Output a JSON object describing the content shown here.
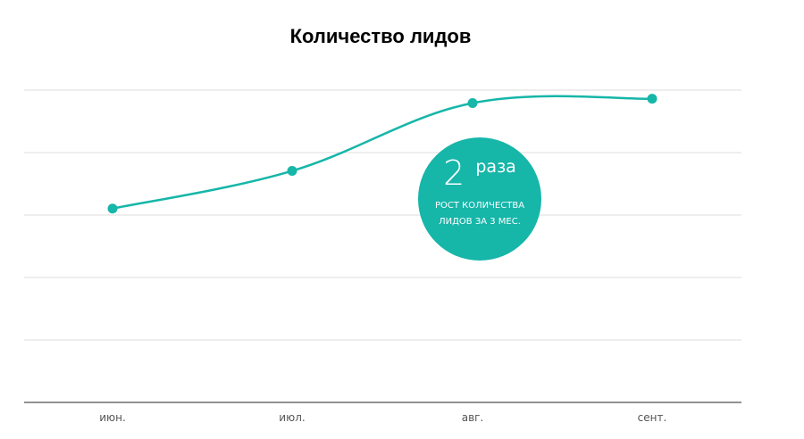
{
  "chart_data": {
    "type": "line",
    "title": "Количество лидов",
    "xlabel": "",
    "ylabel": "",
    "categories": [
      "июн.",
      "июл.",
      "авг.",
      "сент."
    ],
    "series": [
      {
        "values": [
          1.0,
          1.35,
          1.98,
          2.02
        ]
      }
    ],
    "ylim": [
      -0.8,
      2.1
    ],
    "grid": true,
    "color": "#16b6a9"
  },
  "badge": {
    "number": "2",
    "unit": "раза",
    "caption_line1": "РОСТ КОЛИЧЕСТВА",
    "caption_line2": "ЛИДОВ ЗА 3 МЕС."
  }
}
